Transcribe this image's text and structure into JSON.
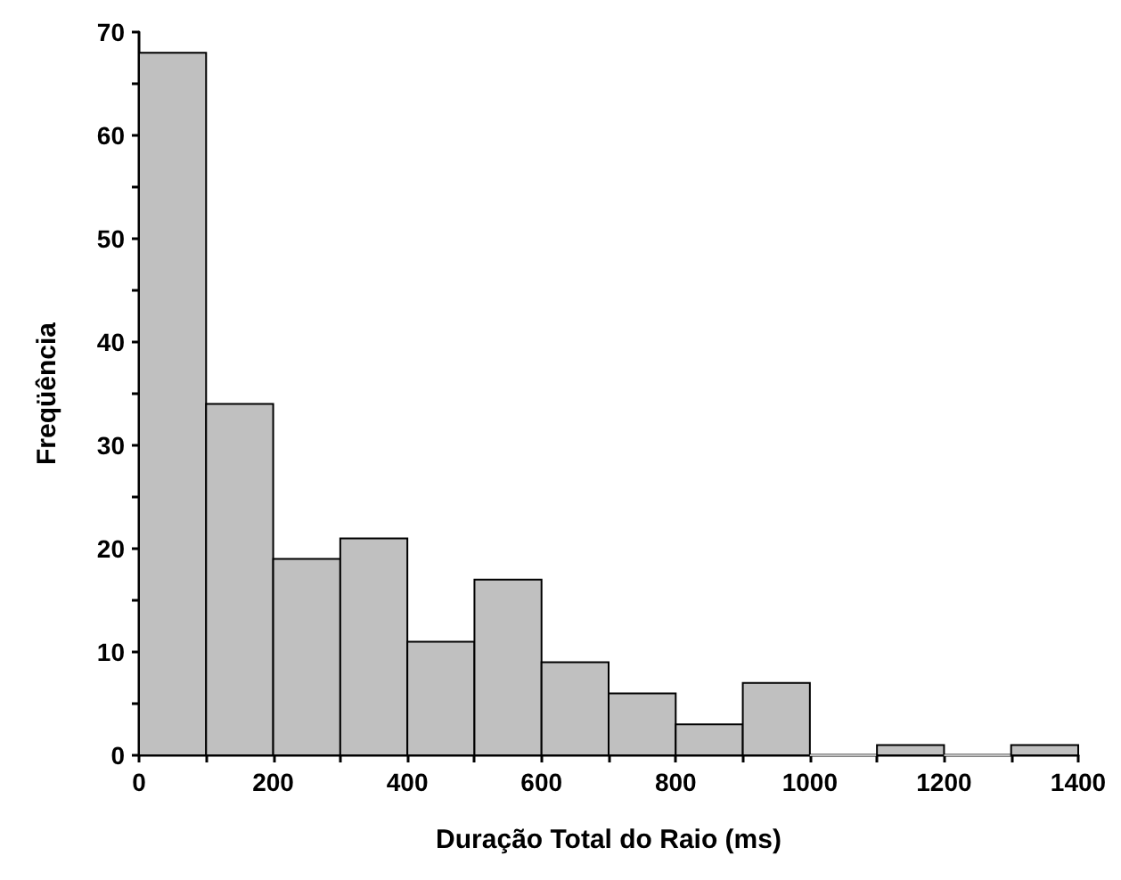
{
  "chart_data": {
    "type": "histogram",
    "xlabel": "Duração Total do Raio (ms)",
    "ylabel": "Freqüência",
    "bins": [
      0,
      100,
      200,
      300,
      400,
      500,
      600,
      700,
      800,
      900,
      1000,
      1100,
      1200,
      1300,
      1400
    ],
    "values": [
      68,
      34,
      19,
      21,
      11,
      17,
      9,
      6,
      3,
      7,
      0,
      1,
      0,
      1
    ],
    "color": "#c0c0c0",
    "xlim": [
      0,
      1400
    ],
    "xticks": [
      0,
      {
        "value": 100,
        "label": null
      },
      200,
      {
        "value": 300,
        "label": null
      },
      400,
      {
        "value": 500,
        "label": null
      },
      600,
      {
        "value": 700,
        "label": null
      },
      800,
      {
        "value": 900,
        "label": null
      },
      1000,
      {
        "value": 1100,
        "label": null
      },
      1200,
      {
        "value": 1300,
        "label": null
      },
      1400
    ],
    "ylim": [
      0,
      70
    ],
    "yticks": [
      0,
      {
        "value": 5,
        "label": null
      },
      10,
      {
        "value": 15,
        "label": null
      },
      20,
      {
        "value": 25,
        "label": null
      },
      30,
      {
        "value": 35,
        "label": null
      },
      40,
      {
        "value": 45,
        "label": null
      },
      50,
      {
        "value": 55,
        "label": null
      },
      60,
      {
        "value": 65,
        "label": null
      },
      70
    ],
    "grid": false
  }
}
